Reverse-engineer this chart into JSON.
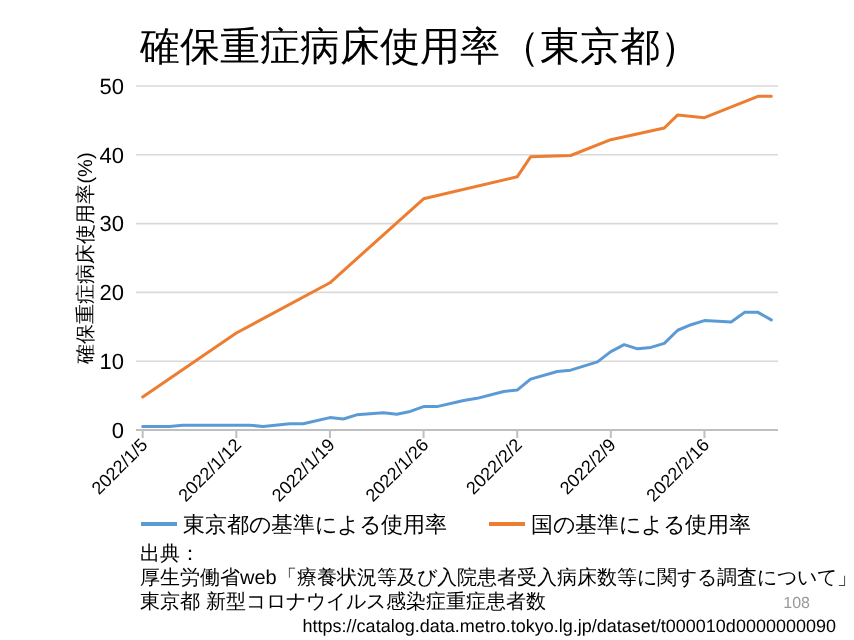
{
  "chart_data": {
    "type": "line",
    "title": "確保重症病床使用率（東京都）",
    "ylabel": "確保重症病床使用率(%)",
    "xlim": [
      "2022-01-04T12:00",
      "2022-02-21T12:00"
    ],
    "xticks": [
      {
        "value": "2022-01-05",
        "label": "2022/1/5"
      },
      {
        "value": "2022-01-12",
        "label": "2022/1/12"
      },
      {
        "value": "2022-01-19",
        "label": "2022/1/19"
      },
      {
        "value": "2022-01-26",
        "label": "2022/1/26"
      },
      {
        "value": "2022-02-02",
        "label": "2022/2/2"
      },
      {
        "value": "2022-02-09",
        "label": "2022/2/9"
      },
      {
        "value": "2022-02-16",
        "label": "2022/2/16"
      }
    ],
    "ylim": [
      0,
      50
    ],
    "yticks": [
      0,
      10,
      20,
      30,
      40,
      50
    ],
    "grid": "y",
    "legend": "bottom",
    "series": [
      {
        "name": "東京都の基準による使用率",
        "color": "#5b9bd5",
        "x": [
          "2022-01-05",
          "2022-01-07",
          "2022-01-08",
          "2022-01-13",
          "2022-01-14",
          "2022-01-16",
          "2022-01-17",
          "2022-01-19",
          "2022-01-20",
          "2022-01-21",
          "2022-01-23",
          "2022-01-24",
          "2022-01-25",
          "2022-01-26",
          "2022-01-27",
          "2022-01-29",
          "2022-01-30",
          "2022-02-01",
          "2022-02-02",
          "2022-02-03",
          "2022-02-05",
          "2022-02-06",
          "2022-02-08",
          "2022-02-09",
          "2022-02-10",
          "2022-02-11",
          "2022-02-12",
          "2022-02-13",
          "2022-02-14",
          "2022-02-15",
          "2022-02-16",
          "2022-02-18",
          "2022-02-19",
          "2022-02-20",
          "2022-02-21"
        ],
        "values": [
          0.5,
          0.5,
          0.7,
          0.7,
          0.5,
          0.9,
          0.9,
          1.8,
          1.6,
          2.2,
          2.5,
          2.3,
          2.7,
          3.4,
          3.4,
          4.3,
          4.6,
          5.6,
          5.8,
          7.4,
          8.5,
          8.7,
          9.9,
          11.4,
          12.4,
          11.8,
          12.0,
          12.6,
          14.5,
          15.3,
          15.9,
          15.7,
          17.1,
          17.1,
          16.0
        ]
      },
      {
        "name": "国の基準による使用率",
        "color": "#ed7d31",
        "x": [
          "2022-01-05",
          "2022-01-12",
          "2022-01-19",
          "2022-01-26",
          "2022-02-02",
          "2022-02-03",
          "2022-02-06",
          "2022-02-09",
          "2022-02-13",
          "2022-02-14",
          "2022-02-16",
          "2022-02-20",
          "2022-02-21"
        ],
        "values": [
          4.8,
          14.1,
          21.4,
          33.6,
          36.8,
          39.7,
          39.9,
          42.2,
          43.9,
          45.8,
          45.4,
          48.5,
          48.5
        ]
      }
    ],
    "annotations": [
      "出典：",
      "厚生労働省web「療養状況等及び入院患者受入病床数等に関する調査について」",
      "東京都 新型コロナウイルス感染症重症患者数",
      "https://catalog.data.metro.tokyo.lg.jp/dataset/t000010d0000000090",
      "108"
    ]
  }
}
